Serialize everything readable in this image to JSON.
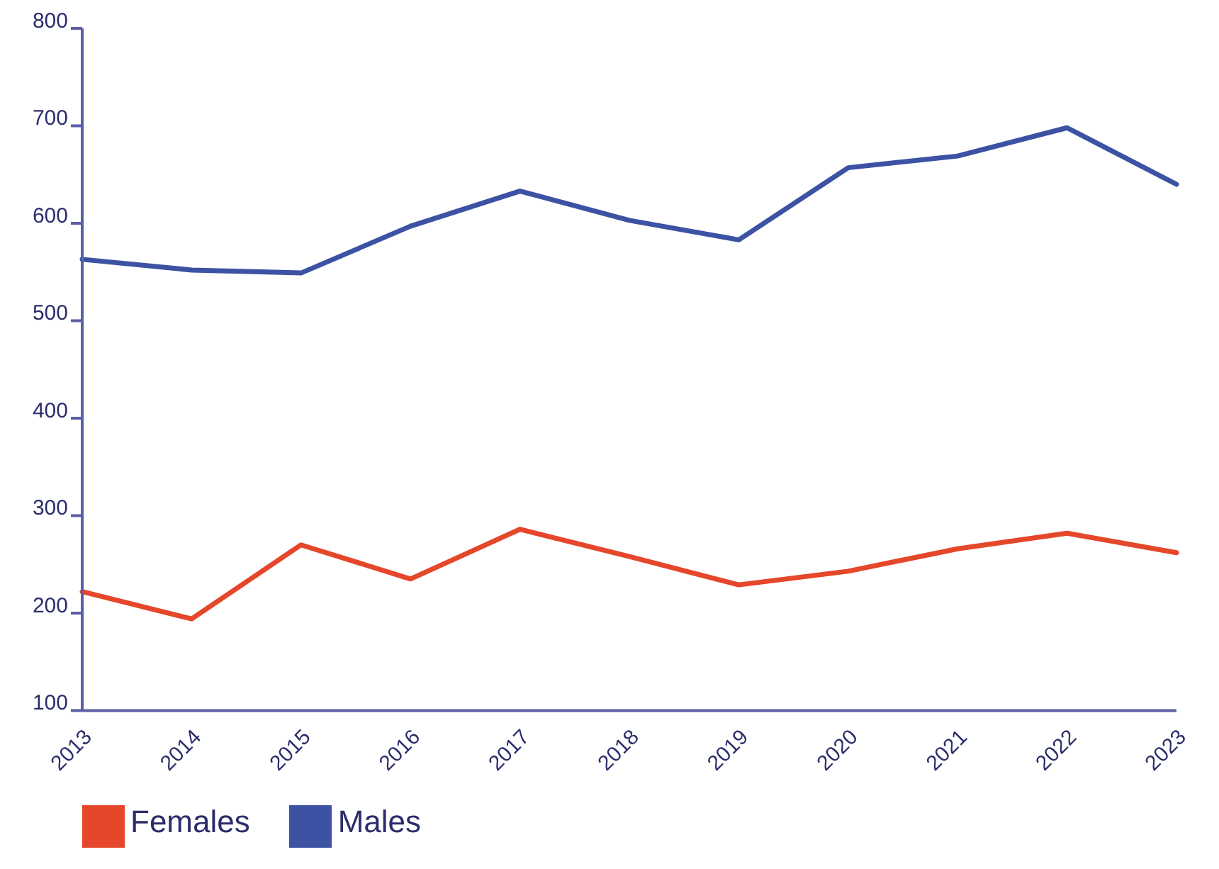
{
  "chart_data": {
    "type": "line",
    "categories": [
      "2013",
      "2014",
      "2015",
      "2016",
      "2017",
      "2018",
      "2019",
      "2020",
      "2021",
      "2022",
      "2023"
    ],
    "series": [
      {
        "name": "Females",
        "color": "#e5472b",
        "values": [
          222,
          194,
          270,
          235,
          286,
          258,
          229,
          243,
          266,
          282,
          262
        ]
      },
      {
        "name": "Males",
        "color": "#3c52a3",
        "values": [
          563,
          552,
          549,
          597,
          633,
          603,
          583,
          657,
          669,
          698,
          640
        ]
      }
    ],
    "ylim": [
      100,
      800
    ],
    "yticks": [
      100,
      200,
      300,
      400,
      500,
      600,
      700,
      800
    ],
    "grid": false,
    "legend": "bottom left",
    "marker": "none",
    "line_style": "solid"
  }
}
